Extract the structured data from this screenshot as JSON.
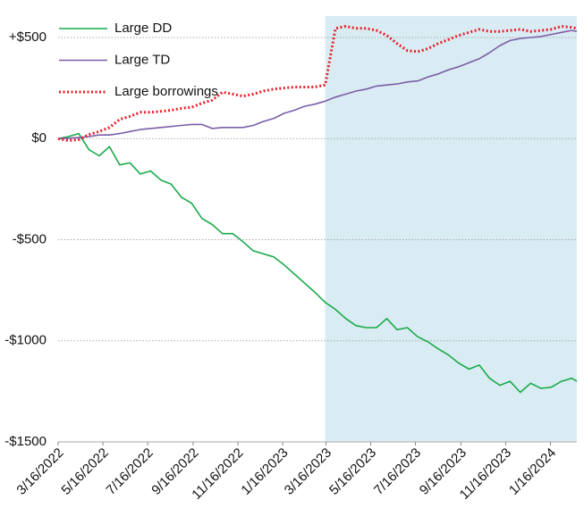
{
  "chart_data": {
    "type": "line",
    "x": [
      "3/16/2022",
      "3/30/2022",
      "4/13/2022",
      "4/27/2022",
      "5/11/2022",
      "5/25/2022",
      "6/8/2022",
      "6/22/2022",
      "7/6/2022",
      "7/20/2022",
      "8/3/2022",
      "8/17/2022",
      "8/31/2022",
      "9/14/2022",
      "9/28/2022",
      "10/12/2022",
      "10/26/2022",
      "11/9/2022",
      "11/23/2022",
      "12/7/2022",
      "12/21/2022",
      "1/4/2023",
      "1/18/2023",
      "2/1/2023",
      "2/15/2023",
      "3/1/2023",
      "3/15/2023",
      "3/29/2023",
      "4/12/2023",
      "4/26/2023",
      "5/10/2023",
      "5/24/2023",
      "6/7/2023",
      "6/21/2023",
      "7/5/2023",
      "7/19/2023",
      "8/2/2023",
      "8/16/2023",
      "8/30/2023",
      "9/13/2023",
      "9/27/2023",
      "10/11/2023",
      "10/25/2023",
      "11/8/2023",
      "11/22/2023",
      "12/6/2023",
      "12/20/2023",
      "1/3/2024",
      "1/17/2024",
      "1/31/2024",
      "2/14/2024",
      "2/21/2024"
    ],
    "series": [
      {
        "name": "Large DD",
        "color": "#1aaa4a",
        "dash": "solid",
        "values": [
          0,
          10,
          25,
          -55,
          -85,
          -40,
          -130,
          -120,
          -175,
          -160,
          -205,
          -225,
          -290,
          -320,
          -395,
          -425,
          -470,
          -470,
          -510,
          -555,
          -570,
          -585,
          -625,
          -670,
          -715,
          -760,
          -810,
          -845,
          -890,
          -925,
          -935,
          -935,
          -890,
          -945,
          -935,
          -980,
          -1005,
          -1040,
          -1070,
          -1110,
          -1140,
          -1120,
          -1185,
          -1220,
          -1200,
          -1255,
          -1210,
          -1235,
          -1230,
          -1200,
          -1185,
          -1200
        ]
      },
      {
        "name": "Large TD",
        "color": "#7b5ea7",
        "dash": "solid",
        "values": [
          0,
          2,
          5,
          10,
          18,
          18,
          25,
          35,
          45,
          50,
          55,
          60,
          65,
          70,
          70,
          50,
          55,
          55,
          55,
          65,
          85,
          100,
          125,
          140,
          160,
          170,
          185,
          205,
          220,
          235,
          245,
          260,
          265,
          270,
          280,
          285,
          305,
          320,
          340,
          355,
          375,
          395,
          425,
          460,
          485,
          495,
          500,
          505,
          515,
          525,
          535,
          530
        ]
      },
      {
        "name": "Large borrowings",
        "color": "#e8202a",
        "dash": "dotted",
        "values": [
          0,
          -10,
          -5,
          20,
          35,
          55,
          95,
          110,
          130,
          130,
          135,
          140,
          150,
          155,
          175,
          190,
          230,
          220,
          210,
          220,
          235,
          245,
          250,
          255,
          255,
          255,
          265,
          545,
          555,
          545,
          545,
          535,
          510,
          470,
          435,
          430,
          445,
          470,
          490,
          510,
          525,
          540,
          530,
          530,
          535,
          540,
          530,
          535,
          540,
          555,
          550,
          545
        ]
      }
    ],
    "xlim": [
      "3/16/2022",
      "2/21/2024"
    ],
    "xticks": [
      "3/16/2022",
      "5/16/2022",
      "7/16/2022",
      "9/16/2022",
      "11/16/2022",
      "1/16/2023",
      "3/16/2023",
      "5/16/2023",
      "7/16/2023",
      "9/16/2023",
      "11/16/2023",
      "1/16/2024"
    ],
    "ylim": [
      -1500,
      500
    ],
    "yticks": [
      {
        "value": -1500,
        "label": "-$1500"
      },
      {
        "value": -1000,
        "label": "-$1000"
      },
      {
        "value": -500,
        "label": "-$500"
      },
      {
        "value": 0,
        "label": "$0"
      },
      {
        "value": 500,
        "label": "+$500"
      }
    ],
    "grid": true,
    "legend": "upper left",
    "shaded_region": {
      "from": "3/15/2023",
      "to": "2/21/2024",
      "color": "#d9ecf3"
    }
  }
}
